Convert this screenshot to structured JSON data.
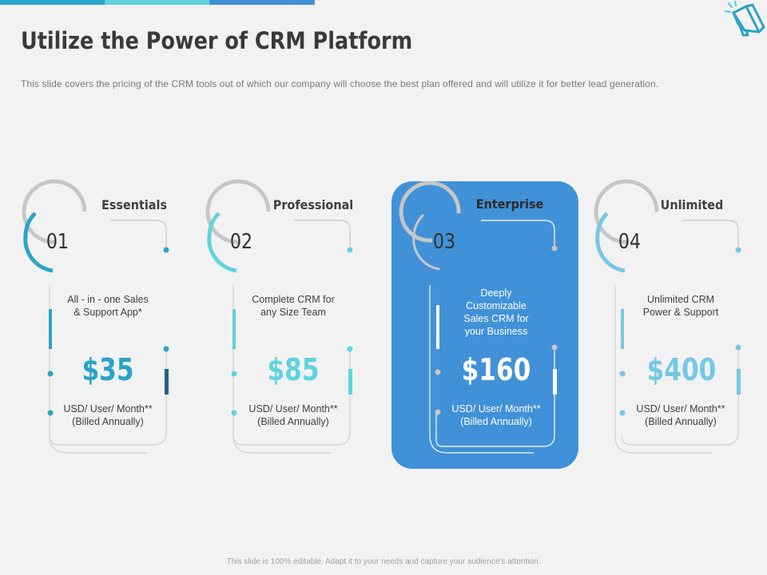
{
  "slide": {
    "title": "Utilize the Power of CRM Platform",
    "subtitle": "This slide covers the pricing of the CRM tools out of which our company will choose the best plan offered and will utilize it for better lead generation.",
    "footer": "This slide is 100% editable. Adapt it to your needs and capture your audience's attention."
  },
  "colors": {
    "teal_dark": "#2aa3c8",
    "teal_light": "#5fd3df",
    "blue_highlight": "#4191d8",
    "sky": "#74c8e6",
    "navy": "#1f6480"
  },
  "plans": [
    {
      "number": "01",
      "name": "Essentials",
      "desc_line1": "All - in - one Sales",
      "desc_line2": "& Support App*",
      "price": "$35",
      "billing_line1": "USD/ User/ Month**",
      "billing_line2": "(Billed Annually)"
    },
    {
      "number": "02",
      "name": "Professional",
      "desc_line1": "Complete CRM for",
      "desc_line2": "any Size Team",
      "price": "$85",
      "billing_line1": "USD/ User/ Month**",
      "billing_line2": "(Billed Annually)"
    },
    {
      "number": "03",
      "name": "Enterprise",
      "desc_line1": "Deeply",
      "desc_line2": "Customizable",
      "desc_line3": "Sales CRM for",
      "desc_line4": "your Business",
      "price": "$160",
      "billing_line1": "USD/ User/ Month**",
      "billing_line2": "(Billed Annually)"
    },
    {
      "number": "04",
      "name": "Unlimited",
      "desc_line1": "Unlimited CRM",
      "desc_line2": "Power & Support",
      "price": "$400",
      "billing_line1": "USD/ User/ Month**",
      "billing_line2": "(Billed Annually)"
    }
  ]
}
